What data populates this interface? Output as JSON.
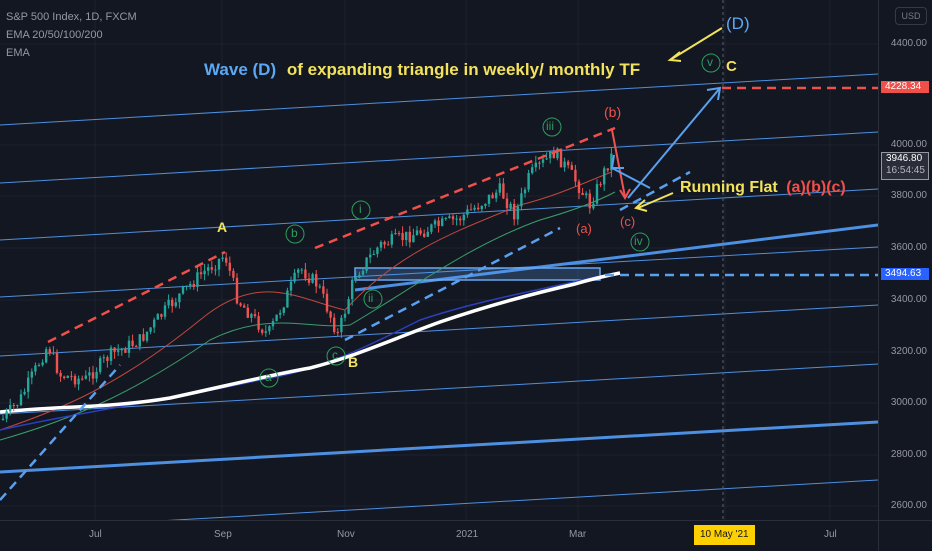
{
  "symbol_legend": {
    "title": "S&P 500 Index, 1D, FXCM",
    "ema": "EMA 20/50/100/200",
    "ema2": "EMA"
  },
  "price_axis": {
    "currency_button": "USD",
    "ticks": [
      "4400.00",
      "4000.00",
      "3800.00",
      "3600.00",
      "3400.00",
      "3200.00",
      "3000.00",
      "2800.00",
      "2600.00"
    ],
    "target_label": "4228.34",
    "current_price": "3946.80",
    "countdown": "16:54:45",
    "support_label": "3494.63"
  },
  "time_axis": {
    "ticks": [
      "Jul",
      "Sep",
      "Nov",
      "2021",
      "Mar",
      "Jul"
    ],
    "cursor_date": "10 May '21"
  },
  "annotations": {
    "headline_prefix": "Wave (D)",
    "headline_rest": "of expanding triangle in weekly/ monthly TF",
    "running_flat": "Running Flat",
    "running_flat_waves": "(a)(b)(c)",
    "wave_A": "A",
    "wave_B": "B",
    "wave_C": "C",
    "wave_D_big": "(D)",
    "wave_b_green": "b",
    "wave_a_green": "a",
    "wave_c_green": "c",
    "wave_i": "i",
    "wave_ii": "ii",
    "wave_iii": "iii",
    "wave_iv": "iv",
    "wave_v": "v",
    "wave_b_red": "(b)",
    "wave_a_red": "(a)",
    "wave_c_red": "(c)"
  },
  "colors": {
    "background": "#131722",
    "up_candle": "#26a69a",
    "down_candle": "#ef5350",
    "channel_line": "#4d8fe0",
    "red_dash": "#f0504a",
    "blue_dash": "#5aa0f0",
    "ema_white": "#ffffff",
    "wave_green": "#2e9e5b",
    "headline_blue": "#5ba8f5",
    "headline_yellow": "#f2e25c"
  }
}
